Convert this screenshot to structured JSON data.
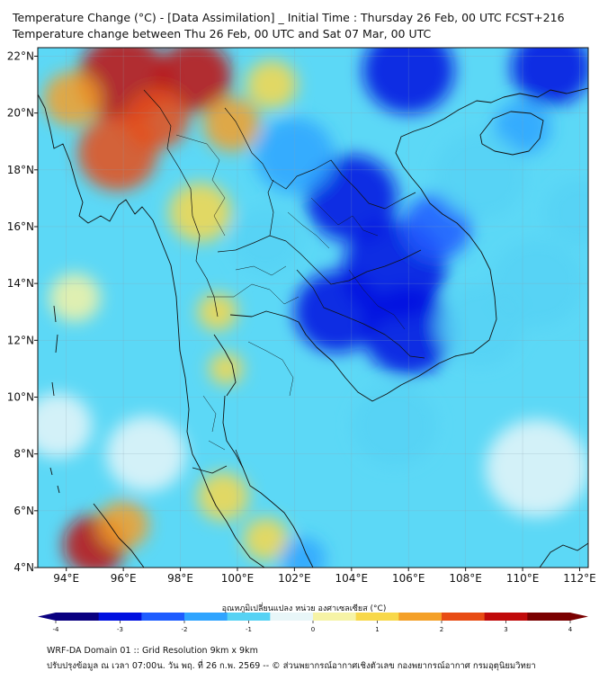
{
  "title_line1": "Temperature Change (°C) - [Data Assimilation] _ Initial Time : Thursday 26 Feb, 00 UTC FCST+216",
  "title_line2": "Temperature change between Thu 26 Feb, 00 UTC and Sat 07 Mar, 00 UTC",
  "map": {
    "lon_range": [
      93,
      112.3
    ],
    "lat_range": [
      4,
      22.3
    ],
    "lon_ticks": [
      {
        "value": 94,
        "label": "94°E"
      },
      {
        "value": 96,
        "label": "96°E"
      },
      {
        "value": 98,
        "label": "98°E"
      },
      {
        "value": 100,
        "label": "100°E"
      },
      {
        "value": 102,
        "label": "102°E"
      },
      {
        "value": 104,
        "label": "104°E"
      },
      {
        "value": 106,
        "label": "106°E"
      },
      {
        "value": 108,
        "label": "108°E"
      },
      {
        "value": 110,
        "label": "110°E"
      },
      {
        "value": 112,
        "label": "112°E"
      }
    ],
    "lat_ticks": [
      {
        "value": 22,
        "label": "22°N"
      },
      {
        "value": 20,
        "label": "20°N"
      },
      {
        "value": 18,
        "label": "18°N"
      },
      {
        "value": 16,
        "label": "16°N"
      },
      {
        "value": 14,
        "label": "14°N"
      },
      {
        "value": 12,
        "label": "12°N"
      },
      {
        "value": 10,
        "label": "10°N"
      },
      {
        "value": 8,
        "label": "8°N"
      },
      {
        "value": 6,
        "label": "6°N"
      },
      {
        "value": 4,
        "label": "4°N"
      }
    ],
    "field_blobs": [
      {
        "lon": 96.0,
        "lat": 21.2,
        "value": 3.0,
        "r": 1.6
      },
      {
        "lon": 98.5,
        "lat": 21.3,
        "value": 2.7,
        "r": 1.3
      },
      {
        "lon": 95.8,
        "lat": 18.6,
        "value": 2.4,
        "r": 1.4
      },
      {
        "lon": 97.2,
        "lat": 19.8,
        "value": 2.3,
        "r": 1.1
      },
      {
        "lon": 94.2,
        "lat": 20.5,
        "value": 1.6,
        "r": 1.0
      },
      {
        "lon": 99.8,
        "lat": 19.6,
        "value": 1.5,
        "r": 1.0
      },
      {
        "lon": 101.2,
        "lat": 21.0,
        "value": 0.8,
        "r": 0.9
      },
      {
        "lon": 98.7,
        "lat": 16.5,
        "value": 0.9,
        "r": 1.1
      },
      {
        "lon": 94.3,
        "lat": 13.5,
        "value": 0.3,
        "r": 0.9
      },
      {
        "lon": 99.3,
        "lat": 13.0,
        "value": 1.0,
        "r": 0.7
      },
      {
        "lon": 99.6,
        "lat": 11.0,
        "value": 1.0,
        "r": 0.6
      },
      {
        "lon": 95.0,
        "lat": 4.8,
        "value": 2.8,
        "r": 1.1
      },
      {
        "lon": 96.0,
        "lat": 5.5,
        "value": 1.6,
        "r": 0.9
      },
      {
        "lon": 99.5,
        "lat": 6.5,
        "value": 1.2,
        "r": 0.9
      },
      {
        "lon": 101.0,
        "lat": 5.0,
        "value": 1.0,
        "r": 0.8
      },
      {
        "lon": 96.8,
        "lat": 8.0,
        "value": -0.6,
        "r": 1.4
      },
      {
        "lon": 104.0,
        "lat": 17.0,
        "value": -3.0,
        "r": 1.6
      },
      {
        "lon": 105.5,
        "lat": 14.5,
        "value": -3.0,
        "r": 1.8
      },
      {
        "lon": 106.0,
        "lat": 12.3,
        "value": -3.2,
        "r": 1.6
      },
      {
        "lon": 103.5,
        "lat": 13.0,
        "value": -2.8,
        "r": 1.5
      },
      {
        "lon": 107.0,
        "lat": 16.0,
        "value": -2.4,
        "r": 1.2
      },
      {
        "lon": 106.0,
        "lat": 21.5,
        "value": -3.0,
        "r": 1.6
      },
      {
        "lon": 111.0,
        "lat": 21.6,
        "value": -3.0,
        "r": 1.4
      },
      {
        "lon": 110.0,
        "lat": 19.5,
        "value": -2.0,
        "r": 1.0
      },
      {
        "lon": 108.5,
        "lat": 17.8,
        "value": -1.2,
        "r": 1.6
      },
      {
        "lon": 108.5,
        "lat": 12.5,
        "value": -1.1,
        "r": 1.5
      },
      {
        "lon": 110.5,
        "lat": 14.0,
        "value": -0.7,
        "r": 1.6
      },
      {
        "lon": 105.5,
        "lat": 9.0,
        "value": -0.8,
        "r": 1.5
      },
      {
        "lon": 102.3,
        "lat": 4.3,
        "value": -1.8,
        "r": 0.8
      },
      {
        "lon": 102.0,
        "lat": 18.5,
        "value": -1.6,
        "r": 1.4
      },
      {
        "lon": 101.0,
        "lat": 15.5,
        "value": -1.2,
        "r": 1.2
      },
      {
        "lon": 110.5,
        "lat": 7.5,
        "value": -0.5,
        "r": 1.8
      },
      {
        "lon": 112.0,
        "lat": 16.5,
        "value": -1.0,
        "r": 1.2
      },
      {
        "lon": 93.7,
        "lat": 9.0,
        "value": -0.4,
        "r": 1.2
      }
    ]
  },
  "colorbar": {
    "title": "อุณหภูมิเปลี่ยนแปลง หน่วย องศาเซลเซียส (°C)",
    "min": -4,
    "max": 4,
    "ticks": [
      {
        "value": -4,
        "label": "-4"
      },
      {
        "value": -3,
        "label": "-3"
      },
      {
        "value": -2,
        "label": "-2"
      },
      {
        "value": -1,
        "label": "-1"
      },
      {
        "value": 0,
        "label": "0"
      },
      {
        "value": 1,
        "label": "1"
      },
      {
        "value": 2,
        "label": "2"
      },
      {
        "value": 3,
        "label": "3"
      },
      {
        "value": 4,
        "label": "4"
      }
    ],
    "colors": [
      "#0a0080",
      "#0010e0",
      "#1e5cff",
      "#2fa4ff",
      "#56d2f4",
      "#e8f6f8",
      "#f6f3a6",
      "#f8d84a",
      "#f4a028",
      "#e84c14",
      "#c00a0a",
      "#7a0000"
    ]
  },
  "footer_line1": "WRF-DA Domain 01 :: Grid Resolution 9km x 9km",
  "footer_line2": "ปรับปรุงข้อมูล ณ เวลา 07:00น. วัน พฤ. ที่ 26 ก.พ. 2569 -- © ส่วนพยากรณ์อากาศเชิงตัวเลข กองพยากรณ์อากาศ กรมอุตุนิยมวิทยา"
}
